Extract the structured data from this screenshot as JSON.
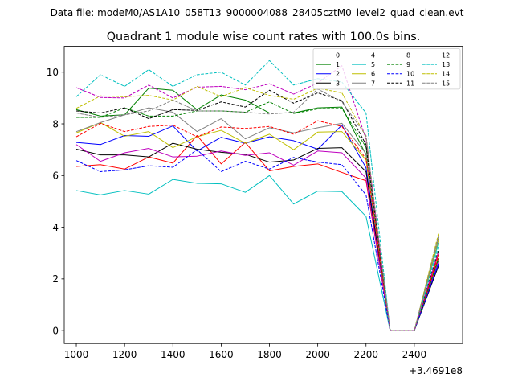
{
  "chart_data": {
    "type": "line",
    "suptitle": "Data file: modeM0/AS1A10_058T13_9000004088_28405cztM0_level2_quad_clean.evt",
    "title": "Quadrant 1 module wise count rates with 100.0s bins.",
    "xlabel": "",
    "ylabel": "",
    "x_offset_label": "+3.4691e8",
    "xlim": [
      950,
      2600
    ],
    "ylim": [
      -0.5,
      11.0
    ],
    "xticks": [
      1000,
      1200,
      1400,
      1600,
      1800,
      2000,
      2200,
      2400
    ],
    "yticks": [
      0,
      2,
      4,
      6,
      8,
      10
    ],
    "x": [
      1000,
      1100,
      1200,
      1300,
      1400,
      1500,
      1600,
      1700,
      1800,
      1900,
      2000,
      2100,
      2200,
      2300,
      2400,
      2500
    ],
    "legend_position": "top-right",
    "legend_columns": 4,
    "series": [
      {
        "name": "0",
        "color": "#ff0000",
        "style": "solid",
        "values": [
          6.35,
          6.42,
          6.25,
          6.72,
          6.48,
          7.55,
          6.45,
          7.28,
          6.18,
          6.35,
          6.45,
          6.12,
          5.8,
          0.0,
          0.0,
          2.95
        ]
      },
      {
        "name": "1",
        "color": "#008000",
        "style": "solid",
        "values": [
          8.55,
          8.3,
          8.35,
          9.38,
          9.3,
          8.55,
          9.12,
          8.92,
          8.42,
          8.42,
          8.62,
          8.65,
          6.8,
          0.0,
          0.0,
          2.8
        ]
      },
      {
        "name": "2",
        "color": "#0000ff",
        "style": "solid",
        "values": [
          7.28,
          7.2,
          7.55,
          7.52,
          7.92,
          6.95,
          7.48,
          7.25,
          7.5,
          7.35,
          7.02,
          7.95,
          6.3,
          0.0,
          0.0,
          2.6
        ]
      },
      {
        "name": "3",
        "color": "#000000",
        "style": "solid",
        "values": [
          7.02,
          6.8,
          6.8,
          6.72,
          7.25,
          7.02,
          6.9,
          6.82,
          6.52,
          6.6,
          7.05,
          7.08,
          6.15,
          0.0,
          0.0,
          2.5
        ]
      },
      {
        "name": "4",
        "color": "#bf00bf",
        "style": "solid",
        "values": [
          7.2,
          6.55,
          6.88,
          7.05,
          6.72,
          6.75,
          6.95,
          6.78,
          6.88,
          6.4,
          6.95,
          6.88,
          5.9,
          0.0,
          0.0,
          2.7
        ]
      },
      {
        "name": "5",
        "color": "#00bfbf",
        "style": "solid",
        "values": [
          5.42,
          5.25,
          5.42,
          5.28,
          5.85,
          5.7,
          5.68,
          5.35,
          6.0,
          4.9,
          5.4,
          5.38,
          4.42,
          0.0,
          0.0,
          3.4
        ]
      },
      {
        "name": "6",
        "color": "#bfbf00",
        "style": "solid",
        "values": [
          7.65,
          8.05,
          7.52,
          7.7,
          7.08,
          7.5,
          7.75,
          7.25,
          7.6,
          7.0,
          7.68,
          7.7,
          6.6,
          0.0,
          0.0,
          3.5
        ]
      },
      {
        "name": "7",
        "color": "#808080",
        "style": "solid",
        "values": [
          7.7,
          8.05,
          8.35,
          8.62,
          8.45,
          7.7,
          8.2,
          7.42,
          7.85,
          7.65,
          7.85,
          8.02,
          6.85,
          0.0,
          0.0,
          3.65
        ]
      },
      {
        "name": "8",
        "color": "#ff0000",
        "style": "dashed",
        "values": [
          7.5,
          8.02,
          7.7,
          7.9,
          7.95,
          7.5,
          7.88,
          7.82,
          7.9,
          7.6,
          8.12,
          7.9,
          6.65,
          0.0,
          0.0,
          2.85
        ]
      },
      {
        "name": "9",
        "color": "#008000",
        "style": "dashed",
        "values": [
          8.25,
          8.25,
          8.62,
          8.3,
          8.3,
          8.5,
          8.5,
          8.45,
          8.85,
          8.4,
          8.58,
          8.6,
          7.1,
          0.0,
          0.0,
          2.75
        ]
      },
      {
        "name": "10",
        "color": "#0000ff",
        "style": "dashed",
        "values": [
          6.58,
          6.15,
          6.22,
          6.38,
          6.32,
          7.0,
          6.15,
          6.55,
          6.25,
          6.7,
          6.52,
          6.42,
          5.25,
          0.0,
          0.0,
          2.55
        ]
      },
      {
        "name": "11",
        "color": "#000000",
        "style": "dashed",
        "values": [
          8.5,
          8.42,
          8.62,
          8.2,
          8.55,
          8.52,
          8.85,
          8.65,
          9.3,
          8.8,
          9.2,
          8.9,
          7.2,
          0.0,
          0.0,
          3.1
        ]
      },
      {
        "name": "12",
        "color": "#bf00bf",
        "style": "dashed",
        "values": [
          9.4,
          9.02,
          9.0,
          9.5,
          9.0,
          9.42,
          9.45,
          9.32,
          9.55,
          9.15,
          9.58,
          10.25,
          7.4,
          0.0,
          0.0,
          3.05
        ]
      },
      {
        "name": "13",
        "color": "#00bfbf",
        "style": "dashed",
        "values": [
          9.05,
          9.9,
          9.45,
          10.1,
          9.45,
          9.9,
          10.0,
          9.5,
          10.45,
          9.5,
          9.75,
          9.62,
          8.42,
          0.0,
          0.0,
          3.25
        ]
      },
      {
        "name": "14",
        "color": "#bfbf00",
        "style": "dashed",
        "values": [
          8.6,
          9.08,
          9.05,
          9.1,
          8.92,
          9.45,
          9.05,
          9.4,
          9.1,
          8.95,
          9.38,
          9.2,
          7.5,
          0.0,
          0.0,
          3.75
        ]
      },
      {
        "name": "15",
        "color": "#808080",
        "style": "dashed",
        "values": [
          8.42,
          8.25,
          8.35,
          8.5,
          8.92,
          8.5,
          8.5,
          8.45,
          8.38,
          8.45,
          9.35,
          8.85,
          7.55,
          0.0,
          0.0,
          3.55
        ]
      }
    ]
  }
}
